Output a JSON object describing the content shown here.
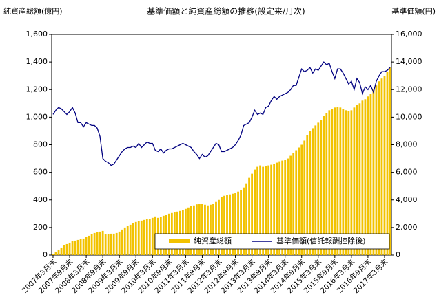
{
  "chart_data": {
    "type": "bar_line",
    "title": "基準価額と純資産総額の推移(設定来/月次)",
    "y_label": "純資産総額(億円)",
    "y2_label": "基準価額(円)",
    "categories": [
      "2007年3月末",
      null,
      null,
      null,
      null,
      null,
      "2007年9月末",
      null,
      null,
      null,
      null,
      null,
      "2008年3月末",
      null,
      null,
      null,
      null,
      null,
      "2008年9月末",
      null,
      null,
      null,
      null,
      null,
      "2009年3月末",
      null,
      null,
      null,
      null,
      null,
      "2009年9月末",
      null,
      null,
      null,
      null,
      null,
      "2010年3月末",
      null,
      null,
      null,
      null,
      null,
      "2010年9月末",
      null,
      null,
      null,
      null,
      null,
      "2011年3月末",
      null,
      null,
      null,
      null,
      null,
      "2011年9月末",
      null,
      null,
      null,
      null,
      null,
      "2012年3月末",
      null,
      null,
      null,
      null,
      null,
      "2012年9月末",
      null,
      null,
      null,
      null,
      null,
      "2013年3月末",
      null,
      null,
      null,
      null,
      null,
      "2013年9月末",
      null,
      null,
      null,
      null,
      null,
      "2014年3月末",
      null,
      null,
      null,
      null,
      null,
      "2014年9月末",
      null,
      null,
      null,
      null,
      null,
      "2015年3月末",
      null,
      null,
      null,
      null,
      null,
      "2015年9月末",
      null,
      null,
      null,
      null,
      null,
      "2016年3月末",
      null,
      null,
      null,
      null,
      null,
      "2016年9月末",
      null,
      null,
      null,
      null,
      null,
      "2017年3月末",
      null,
      null
    ],
    "series": [
      {
        "name": "純資産総額",
        "color": "#f2c200",
        "kind": "bar",
        "values": [
          5,
          20,
          40,
          55,
          70,
          80,
          90,
          100,
          105,
          110,
          115,
          120,
          130,
          140,
          150,
          160,
          165,
          170,
          175,
          150,
          150,
          155,
          155,
          160,
          170,
          185,
          200,
          210,
          220,
          230,
          240,
          245,
          250,
          255,
          260,
          262,
          270,
          280,
          270,
          275,
          285,
          290,
          300,
          305,
          310,
          315,
          320,
          325,
          335,
          345,
          355,
          360,
          368,
          370,
          372,
          365,
          360,
          365,
          370,
          385,
          400,
          420,
          430,
          435,
          440,
          445,
          450,
          460,
          470,
          490,
          520,
          560,
          590,
          620,
          640,
          650,
          640,
          645,
          650,
          655,
          660,
          670,
          680,
          685,
          690,
          700,
          720,
          740,
          760,
          780,
          800,
          830,
          870,
          900,
          920,
          940,
          960,
          980,
          1010,
          1030,
          1050,
          1060,
          1070,
          1075,
          1070,
          1060,
          1050,
          1045,
          1050,
          1070,
          1090,
          1100,
          1120,
          1130,
          1150,
          1170,
          1200,
          1230,
          1260,
          1280,
          1300,
          1330,
          1360
        ]
      },
      {
        "name": "基準価額(信託報酬控除後)",
        "color": "#000080",
        "kind": "line",
        "axis": "y2",
        "values": [
          10200,
          10500,
          10700,
          10600,
          10400,
          10200,
          10400,
          10700,
          10300,
          9600,
          9600,
          9300,
          9600,
          9500,
          9400,
          9400,
          9200,
          8600,
          7000,
          6800,
          6700,
          6500,
          6600,
          6900,
          7200,
          7500,
          7700,
          7800,
          7800,
          7900,
          7800,
          8100,
          7800,
          8000,
          8200,
          8100,
          8100,
          7600,
          7500,
          7700,
          7400,
          7600,
          7700,
          7700,
          7800,
          7900,
          8000,
          8100,
          8000,
          7900,
          7800,
          7500,
          7300,
          7000,
          7300,
          7100,
          7200,
          7500,
          7800,
          8100,
          8000,
          7500,
          7500,
          7600,
          7700,
          7800,
          8000,
          8300,
          8700,
          9400,
          9500,
          9600,
          10000,
          10500,
          10200,
          10300,
          10200,
          10700,
          10800,
          11200,
          11500,
          11300,
          11500,
          11600,
          11700,
          11800,
          12000,
          12300,
          12300,
          12900,
          13500,
          13300,
          13400,
          13600,
          13200,
          13500,
          13400,
          13700,
          14000,
          13800,
          13900,
          13300,
          12800,
          13500,
          13500,
          13200,
          12800,
          12400,
          12600,
          12000,
          12800,
          12500,
          11700,
          12200,
          12000,
          12300,
          11800,
          12600,
          13000,
          13300,
          13300,
          13400,
          13600
        ]
      }
    ],
    "ylim": [
      0,
      1600
    ],
    "yticks": [
      0,
      200,
      400,
      600,
      800,
      {
        "value": 1000,
        "label": "1,000"
      },
      {
        "value": 1200,
        "label": "1,200"
      },
      {
        "value": 1400,
        "label": "1,400"
      },
      {
        "value": 1600,
        "label": "1,600"
      }
    ],
    "y2lim": [
      0,
      16000
    ],
    "y2ticks": [
      0,
      {
        "value": 2000,
        "label": "2,000"
      },
      {
        "value": 4000,
        "label": "4,000"
      },
      {
        "value": 6000,
        "label": "6,000"
      },
      {
        "value": 8000,
        "label": "8,000"
      },
      {
        "value": 10000,
        "label": "10,000"
      },
      {
        "value": 12000,
        "label": "12,000"
      },
      {
        "value": 14000,
        "label": "14,000"
      },
      {
        "value": 16000,
        "label": "16,000"
      }
    ],
    "legend": "bottom-right"
  }
}
